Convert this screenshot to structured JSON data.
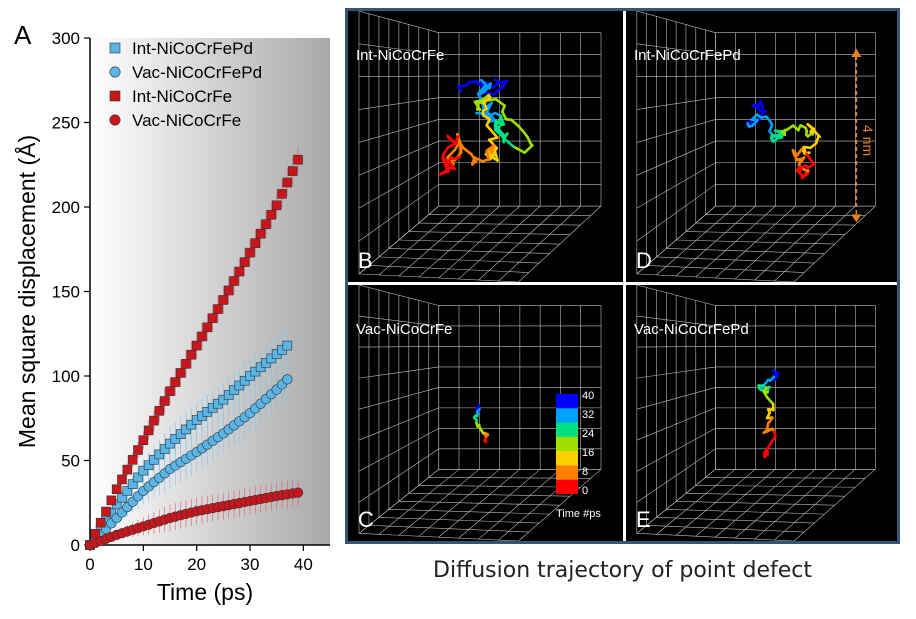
{
  "panel_a_label": "A",
  "caption": "Diffusion trajectory of point defect",
  "colors": {
    "int_pd": "#5ab4e5",
    "vac_pd": "#5ab4e5",
    "int_fe": "#c8161d",
    "vac_fe": "#c8161d",
    "frame_border": "#33557a",
    "scale_arrow": "#e88020"
  },
  "chart_data": {
    "type": "scatter",
    "xlabel": "Time (ps)",
    "ylabel": "Mean square displacement (Å)",
    "xlim": [
      0,
      45
    ],
    "ylim": [
      0,
      300
    ],
    "xticks": [
      0,
      10,
      20,
      30,
      40
    ],
    "yticks": [
      0,
      50,
      100,
      150,
      200,
      250,
      300
    ],
    "legend_position": "top-left",
    "background": "gradient white to gray",
    "series": [
      {
        "name": "Int-NiCoCrFePd",
        "marker": "square",
        "color": "#5ab4e5",
        "x": [
          0,
          5,
          10,
          15,
          20,
          25,
          30,
          35,
          37
        ],
        "y": [
          0,
          24,
          44,
          60,
          74,
          86,
          100,
          113,
          118
        ],
        "error": 10
      },
      {
        "name": "Vac-NiCoCrFePd",
        "marker": "circle",
        "color": "#5ab4e5",
        "x": [
          0,
          5,
          10,
          15,
          20,
          25,
          30,
          35,
          37
        ],
        "y": [
          0,
          16,
          32,
          45,
          55,
          66,
          78,
          92,
          98
        ],
        "error": 12
      },
      {
        "name": "Int-NiCoCrFe",
        "marker": "square",
        "color": "#c8161d",
        "x": [
          0,
          5,
          10,
          15,
          20,
          25,
          30,
          35,
          39
        ],
        "y": [
          0,
          33,
          62,
          91,
          118,
          145,
          173,
          201,
          228
        ],
        "error": 8
      },
      {
        "name": "Vac-NiCoCrFe",
        "marker": "circle",
        "color": "#c8161d",
        "x": [
          0,
          5,
          10,
          15,
          20,
          25,
          30,
          35,
          39
        ],
        "y": [
          0,
          6,
          11,
          16,
          20,
          23,
          26,
          29,
          31
        ],
        "error": 8
      }
    ]
  },
  "panels": [
    {
      "letter": "B",
      "title": "Int-NiCoCrFe"
    },
    {
      "letter": "D",
      "title": "Int-NiCoCrFePd",
      "scale_label": "4 nm"
    },
    {
      "letter": "C",
      "title": "Vac-NiCoCrFe"
    },
    {
      "letter": "E",
      "title": "Vac-NiCoCrFePd"
    }
  ],
  "colorbar": {
    "ticks": [
      "40",
      "32",
      "24",
      "16",
      "8",
      "0"
    ],
    "title": "Time #ps",
    "colors": [
      "#0000ff",
      "#00a0ff",
      "#00e080",
      "#a0e000",
      "#ffd000",
      "#ff8000",
      "#ff0000"
    ]
  }
}
